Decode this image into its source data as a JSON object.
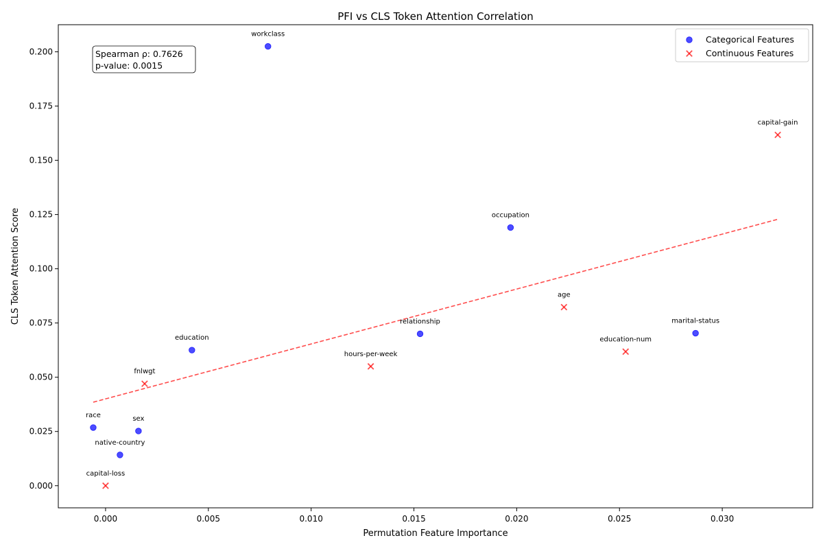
{
  "chart_data": {
    "type": "scatter",
    "title": "PFI vs CLS Token Attention Correlation",
    "xlabel": "Permutation Feature Importance",
    "ylabel": "CLS Token Attention Score",
    "xlim": [
      -0.0023,
      0.0344
    ],
    "ylim": [
      -0.0102,
      0.2125
    ],
    "xticks": [
      0.0,
      0.005,
      0.01,
      0.015,
      0.02,
      0.025,
      0.03
    ],
    "xtick_labels": [
      "0.000",
      "0.005",
      "0.010",
      "0.015",
      "0.020",
      "0.025",
      "0.030"
    ],
    "yticks": [
      0.0,
      0.025,
      0.05,
      0.075,
      0.1,
      0.125,
      0.15,
      0.175,
      0.2
    ],
    "ytick_labels": [
      "0.000",
      "0.025",
      "0.050",
      "0.075",
      "0.100",
      "0.125",
      "0.150",
      "0.175",
      "0.200"
    ],
    "grid": false,
    "legend_position": "top-right",
    "series": [
      {
        "name": "Categorical Features",
        "marker": "circle",
        "color": "#0000ff",
        "points": [
          {
            "label": "workclass",
            "x": 0.0079,
            "y": 0.2025
          },
          {
            "label": "occupation",
            "x": 0.0197,
            "y": 0.119
          },
          {
            "label": "relationship",
            "x": 0.0153,
            "y": 0.07
          },
          {
            "label": "marital-status",
            "x": 0.0287,
            "y": 0.0703
          },
          {
            "label": "education",
            "x": 0.0042,
            "y": 0.0625
          },
          {
            "label": "race",
            "x": -0.0006,
            "y": 0.0268
          },
          {
            "label": "sex",
            "x": 0.0016,
            "y": 0.0252
          },
          {
            "label": "native-country",
            "x": 0.0007,
            "y": 0.0142
          }
        ]
      },
      {
        "name": "Continuous Features",
        "marker": "x",
        "color": "#ff0000",
        "points": [
          {
            "label": "capital-gain",
            "x": 0.0327,
            "y": 0.1617
          },
          {
            "label": "age",
            "x": 0.0223,
            "y": 0.0823
          },
          {
            "label": "education-num",
            "x": 0.0253,
            "y": 0.0618
          },
          {
            "label": "hours-per-week",
            "x": 0.0129,
            "y": 0.055
          },
          {
            "label": "fnlwgt",
            "x": 0.0019,
            "y": 0.047
          },
          {
            "label": "capital-loss",
            "x": 0.0,
            "y": 0.0
          }
        ]
      }
    ],
    "trendline": {
      "color": "#ff0000",
      "style": "dashed",
      "x_start": -0.0006,
      "y_start": 0.0385,
      "x_end": 0.0327,
      "y_end": 0.1228
    },
    "annotation": {
      "lines": [
        "Spearman ρ: 0.7626",
        "p-value: 0.0015"
      ],
      "position": "top-left"
    }
  }
}
